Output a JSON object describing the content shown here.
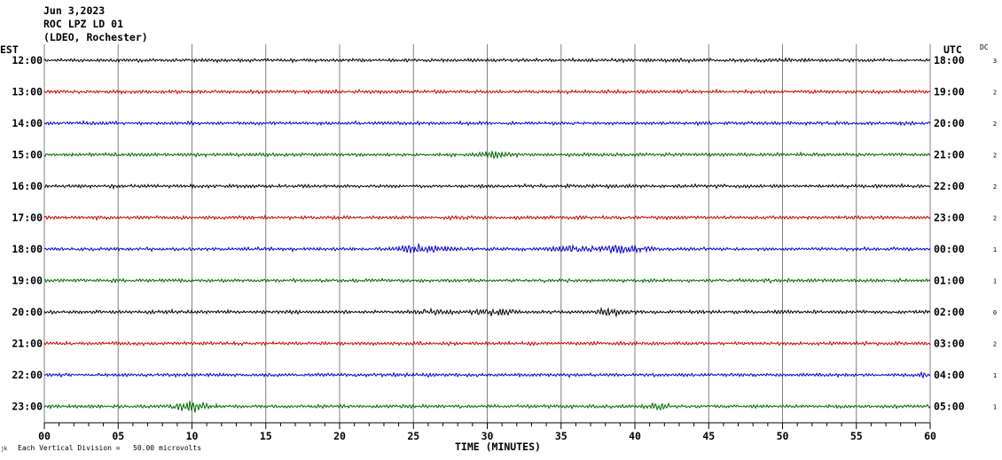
{
  "header": {
    "date": "Jun 3,2023",
    "station": "ROC LPZ LD 01",
    "source": "(LDEO, Rochester)"
  },
  "left_zone": "EST",
  "right_zone": "UTC",
  "dc_label": "DC",
  "footer": {
    "scale_note": "Each Vertical Division =   50.00 microvolts",
    "corner_mark": "jk"
  },
  "colors": {
    "trace_cycle": [
      "#000000",
      "#cc0000",
      "#0000cc",
      "#006600"
    ],
    "grid": "#808080",
    "axis": "#000000"
  },
  "chart_data": {
    "type": "line",
    "title": "",
    "xlabel": "TIME (MINUTES)",
    "ylabel": "",
    "xlim": [
      0,
      60
    ],
    "x_ticks": [
      "00",
      "05",
      "10",
      "15",
      "20",
      "25",
      "30",
      "35",
      "40",
      "45",
      "50",
      "55",
      "60"
    ],
    "x_minor_step": 1,
    "grid": "vertical every 5 minutes",
    "rows": [
      {
        "est": "12:00",
        "utc": "18:00",
        "dc": "3",
        "bursts": []
      },
      {
        "est": "13:00",
        "utc": "19:00",
        "dc": "2",
        "bursts": []
      },
      {
        "est": "14:00",
        "utc": "20:00",
        "dc": "2",
        "bursts": []
      },
      {
        "est": "15:00",
        "utc": "21:00",
        "dc": "2",
        "bursts": [
          [
            30.5,
            1.8,
            2
          ]
        ]
      },
      {
        "est": "16:00",
        "utc": "22:00",
        "dc": "2",
        "bursts": []
      },
      {
        "est": "17:00",
        "utc": "23:00",
        "dc": "2",
        "bursts": []
      },
      {
        "est": "18:00",
        "utc": "00:00",
        "dc": "1",
        "bursts": [
          [
            25.5,
            2.5,
            3
          ],
          [
            35.5,
            1.5,
            2.5
          ],
          [
            39,
            3,
            3
          ]
        ]
      },
      {
        "est": "19:00",
        "utc": "01:00",
        "dc": "1",
        "bursts": []
      },
      {
        "est": "20:00",
        "utc": "02:00",
        "dc": "0",
        "bursts": [
          [
            26.5,
            1.5,
            2
          ],
          [
            30.5,
            2.5,
            3
          ],
          [
            38.5,
            1.5,
            2.5
          ]
        ]
      },
      {
        "est": "21:00",
        "utc": "03:00",
        "dc": "2",
        "bursts": []
      },
      {
        "est": "22:00",
        "utc": "04:00",
        "dc": "1",
        "bursts": [
          [
            59.5,
            0.5,
            2
          ]
        ]
      },
      {
        "est": "23:00",
        "utc": "05:00",
        "dc": "1",
        "bursts": [
          [
            10,
            2,
            4
          ],
          [
            41.5,
            1.5,
            2
          ]
        ]
      }
    ]
  }
}
